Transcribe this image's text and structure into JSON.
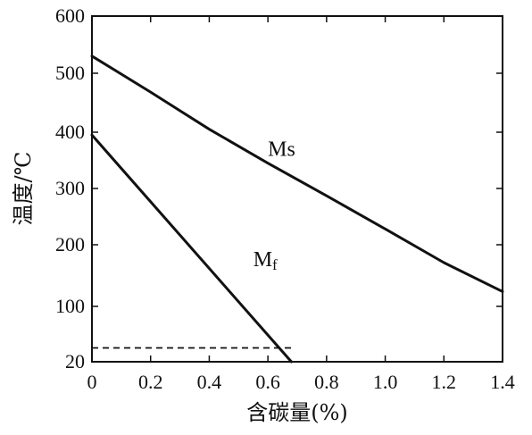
{
  "chart_data": {
    "type": "line",
    "xlabel": "含碳量(%)",
    "ylabel": "温度/℃",
    "xlim": [
      0,
      1.4
    ],
    "ylim": [
      20,
      600
    ],
    "xticks": [
      0,
      0.2,
      0.4,
      0.6,
      0.8,
      1.0,
      1.2,
      1.4
    ],
    "xtick_labels": [
      "0",
      "0.2",
      "0.4",
      "0.6",
      "0.8",
      "1.0",
      "1.2",
      "1.4"
    ],
    "yticks": [
      20,
      100,
      200,
      300,
      400,
      500,
      600
    ],
    "ytick_labels": [
      "20",
      "100",
      "200",
      "300",
      "400",
      "500",
      "600"
    ],
    "grid": false,
    "legend": "none",
    "series": [
      {
        "name": "Ms",
        "name_main": "M",
        "name_sub": "s",
        "style": "solid",
        "x": [
          0,
          0.2,
          0.4,
          0.6,
          0.8,
          1.0,
          1.2,
          1.4
        ],
        "y": [
          530,
          468,
          405,
          345,
          287,
          228,
          171,
          124
        ]
      },
      {
        "name": "Mf",
        "name_main": "M",
        "name_sub": "f",
        "style": "solid",
        "x": [
          0,
          0.68
        ],
        "y": [
          395,
          20
        ]
      }
    ],
    "reference_line": {
      "style": "dashed",
      "x": [
        0,
        0.68
      ],
      "y": [
        40,
        40
      ]
    },
    "annotations": [
      {
        "series": "Ms",
        "x": 0.6,
        "y": 358
      },
      {
        "series": "Mf",
        "x": 0.55,
        "y": 165
      }
    ],
    "colors": {
      "line": "#111111",
      "background": "#ffffff"
    }
  }
}
